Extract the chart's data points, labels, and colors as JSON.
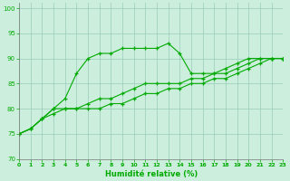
{
  "xlabel": "Humidité relative (%)",
  "background_color": "#cceedd",
  "grid_color": "#99ccbb",
  "line_color": "#00aa00",
  "ylim": [
    70,
    101
  ],
  "xlim": [
    0,
    23
  ],
  "yticks": [
    70,
    75,
    80,
    85,
    90,
    95,
    100
  ],
  "xticks": [
    0,
    1,
    2,
    3,
    4,
    5,
    6,
    7,
    8,
    9,
    10,
    11,
    12,
    13,
    14,
    15,
    16,
    17,
    18,
    19,
    20,
    21,
    22,
    23
  ],
  "series_high": [
    75,
    76,
    78,
    80,
    82,
    87,
    90,
    91,
    91,
    92,
    92,
    92,
    92,
    93,
    91,
    87,
    87,
    87,
    88,
    89,
    90,
    90,
    90,
    90
  ],
  "series_mid": [
    75,
    76,
    78,
    80,
    80,
    80,
    81,
    82,
    82,
    83,
    84,
    85,
    85,
    85,
    85,
    86,
    86,
    87,
    87,
    88,
    89,
    90,
    90,
    90
  ],
  "series_low": [
    75,
    76,
    78,
    79,
    80,
    80,
    80,
    80,
    81,
    81,
    82,
    83,
    83,
    84,
    84,
    85,
    85,
    86,
    86,
    87,
    88,
    89,
    90,
    90
  ]
}
